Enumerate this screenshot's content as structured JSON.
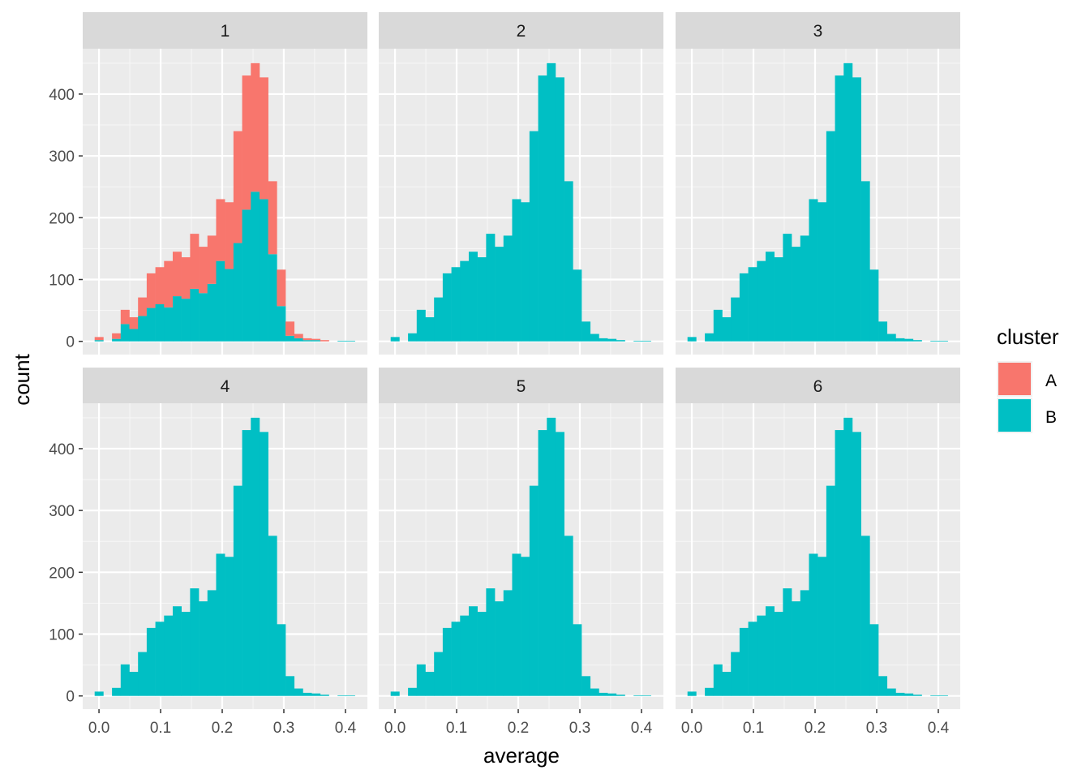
{
  "chart_data": {
    "type": "bar",
    "subtype": "faceted stacked histogram",
    "xlabel": "average",
    "ylabel": "count",
    "xlim": [
      -0.0264,
      0.4356
    ],
    "ylim": [
      -21.4,
      473.4
    ],
    "x_ticks": [
      "0.0",
      "0.1",
      "0.2",
      "0.3",
      "0.4"
    ],
    "x_tick_values": [
      0,
      0.1,
      0.2,
      0.3,
      0.4
    ],
    "y_ticks": [
      "0",
      "100",
      "200",
      "300",
      "400"
    ],
    "y_tick_values": [
      0,
      100,
      200,
      300,
      400
    ],
    "grid": true,
    "binwidth": 0.01408,
    "bin_centers_start": 0.0,
    "legend": {
      "title": "cluster",
      "placement": "right",
      "entries": [
        {
          "label": "A",
          "color": "#F8766D"
        },
        {
          "label": "B",
          "color": "#00BFC4"
        }
      ]
    },
    "facets": [
      {
        "label": "1",
        "series": [
          {
            "name": "A",
            "values": [
              5,
              0,
              9,
              23,
              19,
              30,
              56,
              60,
              75,
              72,
              67,
              89,
              75,
              78,
              100,
              108,
              181,
              217,
              208,
              197,
              118,
              59,
              23,
              7,
              3,
              2,
              2,
              0,
              0,
              0
            ]
          },
          {
            "name": "B",
            "values": [
              2,
              0,
              4,
              28,
              20,
              41,
              54,
              60,
              55,
              73,
              69,
              85,
              78,
              93,
              130,
              117,
              159,
              213,
              242,
              230,
              141,
              57,
              9,
              5,
              2,
              2,
              0,
              0,
              1,
              1
            ]
          }
        ]
      },
      {
        "label": "2",
        "series": [
          {
            "name": "B",
            "values": [
              7,
              0,
              13,
              51,
              39,
              71,
              110,
              120,
              130,
              145,
              136,
              174,
              153,
              171,
              230,
              225,
              340,
              430,
              450,
              427,
              259,
              116,
              32,
              12,
              5,
              4,
              2,
              0,
              1,
              1
            ]
          }
        ]
      },
      {
        "label": "3",
        "series": [
          {
            "name": "B",
            "values": [
              7,
              0,
              13,
              51,
              39,
              71,
              110,
              120,
              130,
              145,
              136,
              174,
              153,
              171,
              230,
              225,
              340,
              430,
              450,
              427,
              259,
              116,
              32,
              12,
              5,
              4,
              2,
              0,
              1,
              1
            ]
          }
        ]
      },
      {
        "label": "4",
        "series": [
          {
            "name": "B",
            "values": [
              7,
              0,
              13,
              51,
              39,
              71,
              110,
              120,
              130,
              145,
              136,
              174,
              153,
              171,
              230,
              225,
              340,
              430,
              450,
              427,
              259,
              116,
              32,
              12,
              5,
              4,
              2,
              0,
              1,
              1
            ]
          }
        ]
      },
      {
        "label": "5",
        "series": [
          {
            "name": "B",
            "values": [
              7,
              0,
              13,
              51,
              39,
              71,
              110,
              120,
              130,
              145,
              136,
              174,
              153,
              171,
              230,
              225,
              340,
              430,
              450,
              427,
              259,
              116,
              32,
              12,
              5,
              4,
              2,
              0,
              1,
              1
            ]
          }
        ]
      },
      {
        "label": "6",
        "series": [
          {
            "name": "B",
            "values": [
              7,
              0,
              13,
              51,
              39,
              71,
              110,
              120,
              130,
              145,
              136,
              174,
              153,
              171,
              230,
              225,
              340,
              430,
              450,
              427,
              259,
              116,
              32,
              12,
              5,
              4,
              2,
              0,
              1,
              1
            ]
          }
        ]
      }
    ]
  }
}
